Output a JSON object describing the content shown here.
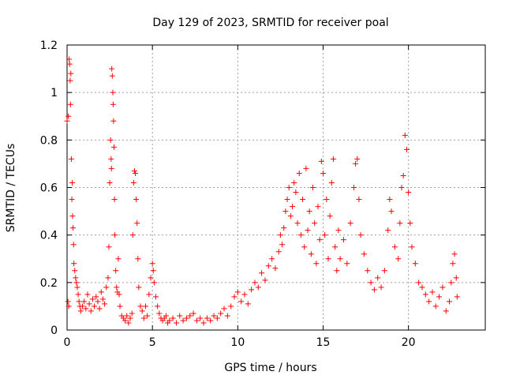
{
  "chart_data": {
    "type": "scatter",
    "title": "Day 129 of 2023, SRMTID for receiver poal",
    "xlabel": "GPS time / hours",
    "ylabel": "SRMTID / TECUs",
    "xlim": [
      0,
      24.5
    ],
    "ylim": [
      0,
      1.2
    ],
    "xticks": [
      0,
      5,
      10,
      15,
      20
    ],
    "yticks": [
      0,
      0.2,
      0.4,
      0.6,
      0.8,
      1.0,
      1.2
    ],
    "xtick_labels": [
      "0",
      "5",
      "10",
      "15",
      "20"
    ],
    "ytick_labels": [
      "0",
      "0.2",
      "0.4",
      "0.6",
      "0.8",
      "1",
      "1.2"
    ],
    "grid": true,
    "marker": "+",
    "color": "#ff0000",
    "series": [
      {
        "name": "SRMTID",
        "points": [
          [
            0.0,
            0.88
          ],
          [
            0.05,
            0.12
          ],
          [
            0.08,
            0.9
          ],
          [
            0.1,
            0.1
          ],
          [
            0.12,
            1.14
          ],
          [
            0.15,
            1.12
          ],
          [
            0.18,
            1.05
          ],
          [
            0.2,
            0.95
          ],
          [
            0.22,
            1.08
          ],
          [
            0.25,
            0.72
          ],
          [
            0.28,
            0.55
          ],
          [
            0.3,
            0.62
          ],
          [
            0.32,
            0.48
          ],
          [
            0.35,
            0.43
          ],
          [
            0.38,
            0.36
          ],
          [
            0.4,
            0.28
          ],
          [
            0.45,
            0.25
          ],
          [
            0.5,
            0.22
          ],
          [
            0.55,
            0.2
          ],
          [
            0.6,
            0.18
          ],
          [
            0.65,
            0.15
          ],
          [
            0.7,
            0.12
          ],
          [
            0.75,
            0.1
          ],
          [
            0.8,
            0.08
          ],
          [
            0.9,
            0.1
          ],
          [
            1.0,
            0.12
          ],
          [
            1.1,
            0.09
          ],
          [
            1.2,
            0.15
          ],
          [
            1.3,
            0.11
          ],
          [
            1.4,
            0.08
          ],
          [
            1.5,
            0.13
          ],
          [
            1.6,
            0.1
          ],
          [
            1.7,
            0.14
          ],
          [
            1.8,
            0.12
          ],
          [
            1.9,
            0.09
          ],
          [
            2.0,
            0.16
          ],
          [
            2.1,
            0.13
          ],
          [
            2.2,
            0.11
          ],
          [
            2.3,
            0.18
          ],
          [
            2.4,
            0.22
          ],
          [
            2.45,
            0.35
          ],
          [
            2.5,
            0.62
          ],
          [
            2.55,
            0.8
          ],
          [
            2.58,
            0.72
          ],
          [
            2.6,
            0.68
          ],
          [
            2.62,
            1.1
          ],
          [
            2.65,
            1.07
          ],
          [
            2.68,
            1.0
          ],
          [
            2.7,
            0.95
          ],
          [
            2.72,
            0.88
          ],
          [
            2.75,
            0.77
          ],
          [
            2.78,
            0.55
          ],
          [
            2.8,
            0.4
          ],
          [
            2.85,
            0.25
          ],
          [
            2.9,
            0.18
          ],
          [
            2.95,
            0.16
          ],
          [
            3.0,
            0.3
          ],
          [
            3.05,
            0.15
          ],
          [
            3.1,
            0.1
          ],
          [
            3.2,
            0.06
          ],
          [
            3.3,
            0.05
          ],
          [
            3.4,
            0.04
          ],
          [
            3.5,
            0.06
          ],
          [
            3.6,
            0.03
          ],
          [
            3.7,
            0.05
          ],
          [
            3.8,
            0.07
          ],
          [
            3.85,
            0.4
          ],
          [
            3.9,
            0.62
          ],
          [
            3.95,
            0.67
          ],
          [
            4.0,
            0.66
          ],
          [
            4.05,
            0.55
          ],
          [
            4.1,
            0.45
          ],
          [
            4.15,
            0.3
          ],
          [
            4.2,
            0.18
          ],
          [
            4.3,
            0.1
          ],
          [
            4.4,
            0.08
          ],
          [
            4.5,
            0.05
          ],
          [
            4.6,
            0.1
          ],
          [
            4.7,
            0.06
          ],
          [
            4.8,
            0.15
          ],
          [
            4.9,
            0.22
          ],
          [
            5.0,
            0.28
          ],
          [
            5.05,
            0.25
          ],
          [
            5.1,
            0.2
          ],
          [
            5.2,
            0.14
          ],
          [
            5.3,
            0.1
          ],
          [
            5.4,
            0.07
          ],
          [
            5.5,
            0.05
          ],
          [
            5.6,
            0.04
          ],
          [
            5.7,
            0.05
          ],
          [
            5.8,
            0.06
          ],
          [
            5.9,
            0.03
          ],
          [
            6.0,
            0.04
          ],
          [
            6.2,
            0.05
          ],
          [
            6.4,
            0.03
          ],
          [
            6.6,
            0.06
          ],
          [
            6.8,
            0.04
          ],
          [
            7.0,
            0.05
          ],
          [
            7.2,
            0.06
          ],
          [
            7.4,
            0.07
          ],
          [
            7.6,
            0.04
          ],
          [
            7.8,
            0.05
          ],
          [
            8.0,
            0.03
          ],
          [
            8.2,
            0.05
          ],
          [
            8.4,
            0.04
          ],
          [
            8.6,
            0.06
          ],
          [
            8.8,
            0.05
          ],
          [
            9.0,
            0.07
          ],
          [
            9.2,
            0.09
          ],
          [
            9.4,
            0.06
          ],
          [
            9.6,
            0.1
          ],
          [
            9.8,
            0.14
          ],
          [
            10.0,
            0.16
          ],
          [
            10.2,
            0.12
          ],
          [
            10.4,
            0.15
          ],
          [
            10.6,
            0.11
          ],
          [
            10.8,
            0.17
          ],
          [
            11.0,
            0.2
          ],
          [
            11.2,
            0.18
          ],
          [
            11.4,
            0.24
          ],
          [
            11.6,
            0.21
          ],
          [
            11.8,
            0.27
          ],
          [
            12.0,
            0.3
          ],
          [
            12.2,
            0.26
          ],
          [
            12.4,
            0.33
          ],
          [
            12.5,
            0.4
          ],
          [
            12.6,
            0.36
          ],
          [
            12.7,
            0.43
          ],
          [
            12.8,
            0.5
          ],
          [
            12.9,
            0.55
          ],
          [
            13.0,
            0.6
          ],
          [
            13.1,
            0.48
          ],
          [
            13.2,
            0.52
          ],
          [
            13.3,
            0.62
          ],
          [
            13.4,
            0.58
          ],
          [
            13.5,
            0.45
          ],
          [
            13.6,
            0.66
          ],
          [
            13.7,
            0.4
          ],
          [
            13.8,
            0.55
          ],
          [
            13.9,
            0.35
          ],
          [
            14.0,
            0.68
          ],
          [
            14.1,
            0.42
          ],
          [
            14.2,
            0.5
          ],
          [
            14.3,
            0.32
          ],
          [
            14.4,
            0.6
          ],
          [
            14.5,
            0.45
          ],
          [
            14.6,
            0.28
          ],
          [
            14.7,
            0.52
          ],
          [
            14.8,
            0.38
          ],
          [
            14.9,
            0.71
          ],
          [
            15.0,
            0.66
          ],
          [
            15.1,
            0.4
          ],
          [
            15.2,
            0.55
          ],
          [
            15.3,
            0.3
          ],
          [
            15.4,
            0.48
          ],
          [
            15.5,
            0.62
          ],
          [
            15.6,
            0.72
          ],
          [
            15.7,
            0.35
          ],
          [
            15.8,
            0.25
          ],
          [
            15.9,
            0.42
          ],
          [
            16.0,
            0.3
          ],
          [
            16.2,
            0.38
          ],
          [
            16.4,
            0.28
          ],
          [
            16.6,
            0.45
          ],
          [
            16.8,
            0.6
          ],
          [
            16.9,
            0.7
          ],
          [
            17.0,
            0.72
          ],
          [
            17.1,
            0.55
          ],
          [
            17.2,
            0.4
          ],
          [
            17.4,
            0.32
          ],
          [
            17.6,
            0.25
          ],
          [
            17.8,
            0.2
          ],
          [
            18.0,
            0.17
          ],
          [
            18.2,
            0.22
          ],
          [
            18.4,
            0.18
          ],
          [
            18.6,
            0.25
          ],
          [
            18.8,
            0.42
          ],
          [
            18.9,
            0.55
          ],
          [
            19.0,
            0.5
          ],
          [
            19.2,
            0.35
          ],
          [
            19.4,
            0.3
          ],
          [
            19.5,
            0.45
          ],
          [
            19.6,
            0.6
          ],
          [
            19.7,
            0.65
          ],
          [
            19.8,
            0.82
          ],
          [
            19.9,
            0.76
          ],
          [
            20.0,
            0.58
          ],
          [
            20.1,
            0.45
          ],
          [
            20.2,
            0.35
          ],
          [
            20.4,
            0.28
          ],
          [
            20.6,
            0.2
          ],
          [
            20.8,
            0.18
          ],
          [
            21.0,
            0.15
          ],
          [
            21.2,
            0.12
          ],
          [
            21.4,
            0.16
          ],
          [
            21.6,
            0.1
          ],
          [
            21.8,
            0.14
          ],
          [
            22.0,
            0.18
          ],
          [
            22.2,
            0.08
          ],
          [
            22.4,
            0.12
          ],
          [
            22.5,
            0.2
          ],
          [
            22.6,
            0.28
          ],
          [
            22.7,
            0.32
          ],
          [
            22.8,
            0.22
          ],
          [
            22.85,
            0.14
          ]
        ]
      }
    ]
  }
}
